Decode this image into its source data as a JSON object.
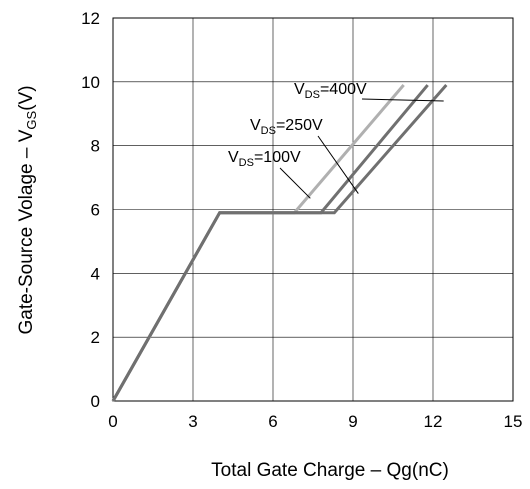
{
  "chart_data": {
    "type": "line",
    "title": "",
    "xlabel": "Total Gate Charge",
    "xlabel_unit": "Qg(nC)",
    "ylabel": "Gate-Source Volage",
    "ylabel_unit": "VGS(V)",
    "xlim": [
      0,
      15
    ],
    "ylim": [
      0,
      12
    ],
    "x_ticks": [
      0,
      3,
      6,
      9,
      12,
      15
    ],
    "y_ticks": [
      0,
      2,
      4,
      6,
      8,
      10,
      12
    ],
    "grid": true,
    "legend": "none",
    "series": [
      {
        "name": "VDS=100V",
        "color": "#b0b0b0",
        "points": [
          [
            0,
            0
          ],
          [
            4.0,
            5.9
          ],
          [
            6.8,
            5.9
          ],
          [
            10.9,
            9.9
          ]
        ]
      },
      {
        "name": "VDS=250V",
        "color": "#707070",
        "points": [
          [
            0,
            0
          ],
          [
            4.0,
            5.9
          ],
          [
            7.8,
            5.9
          ],
          [
            11.8,
            9.9
          ]
        ]
      },
      {
        "name": "VDS=400V",
        "color": "#707070",
        "points": [
          [
            0,
            0
          ],
          [
            4.0,
            5.9
          ],
          [
            8.3,
            5.9
          ],
          [
            12.5,
            9.9
          ]
        ]
      }
    ],
    "annotations": [
      {
        "text_main": "V",
        "text_sub": "DS",
        "text_rest": "=400V",
        "series": "VDS=400V",
        "at": [
          12.4,
          9.4
        ]
      },
      {
        "text_main": "V",
        "text_sub": "DS",
        "text_rest": "=250V",
        "series": "VDS=250V",
        "at": [
          9.1,
          6.4
        ]
      },
      {
        "text_main": "V",
        "text_sub": "DS",
        "text_rest": "=100V",
        "series": "VDS=100V",
        "at": [
          7.3,
          6.4
        ]
      }
    ]
  }
}
